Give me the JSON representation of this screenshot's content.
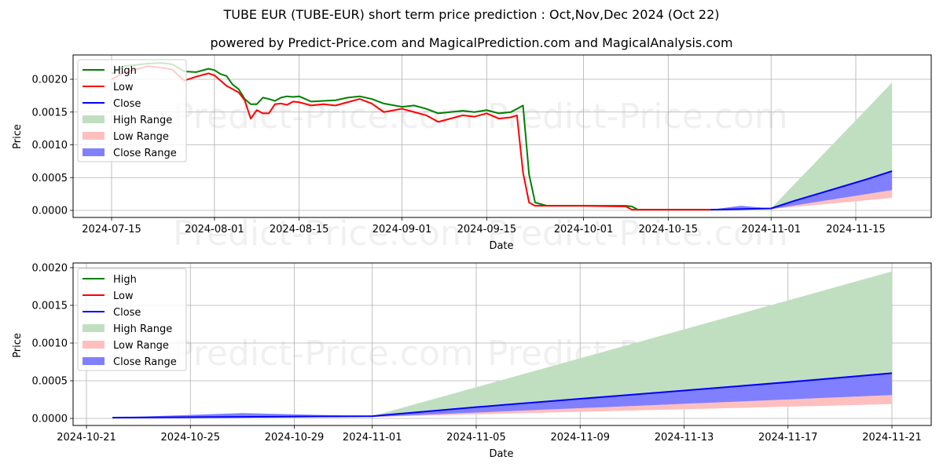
{
  "title": "TUBE EUR (TUBE-EUR) short term price prediction : Oct,Nov,Dec 2024 (Oct 22)",
  "subtitle": "powered by Predict-Price.com and MagicalPrediction.com and MagicalAnalysis.com",
  "watermark": "Predict-Price.com",
  "colors": {
    "high": "#008000",
    "low": "#ff0000",
    "close": "#0000ff",
    "high_range": "#c0dfc0",
    "low_range": "#ffbfbf",
    "close_range": "#8080ff"
  },
  "legend": [
    "High",
    "Low",
    "Close",
    "High Range",
    "Low Range",
    "Close Range"
  ],
  "chart_data": [
    {
      "type": "line",
      "title": "",
      "xlabel": "Date",
      "ylabel": "Price",
      "ylim": [
        -0.0001,
        0.0024
      ],
      "xlim": [
        "2024-07-09",
        "2024-11-26"
      ],
      "grid": true,
      "legend_position": "upper left",
      "x_ticks": [
        "2024-07-15",
        "2024-08-01",
        "2024-08-15",
        "2024-09-01",
        "2024-09-15",
        "2024-10-01",
        "2024-10-15",
        "2024-11-01",
        "2024-11-15"
      ],
      "y_ticks": [
        "0.0000",
        "0.0005",
        "0.0010",
        "0.0015",
        "0.0020"
      ],
      "series": [
        {
          "name": "High",
          "x": [
            "2024-07-15",
            "2024-07-17",
            "2024-07-19",
            "2024-07-21",
            "2024-07-23",
            "2024-07-25",
            "2024-07-27",
            "2024-07-29",
            "2024-07-31",
            "2024-08-01",
            "2024-08-02",
            "2024-08-03",
            "2024-08-04",
            "2024-08-05",
            "2024-08-06",
            "2024-08-07",
            "2024-08-08",
            "2024-08-09",
            "2024-08-10",
            "2024-08-11",
            "2024-08-12",
            "2024-08-13",
            "2024-08-14",
            "2024-08-15",
            "2024-08-17",
            "2024-08-19",
            "2024-08-21",
            "2024-08-23",
            "2024-08-25",
            "2024-08-27",
            "2024-08-29",
            "2024-09-01",
            "2024-09-03",
            "2024-09-05",
            "2024-09-07",
            "2024-09-09",
            "2024-09-11",
            "2024-09-13",
            "2024-09-15",
            "2024-09-17",
            "2024-09-19",
            "2024-09-20",
            "2024-09-21",
            "2024-09-22",
            "2024-09-23",
            "2024-09-25",
            "2024-10-01",
            "2024-10-08",
            "2024-10-09",
            "2024-10-10",
            "2024-10-22"
          ],
          "values": [
            0.00208,
            0.0022,
            0.00222,
            0.00224,
            0.00225,
            0.00223,
            0.00212,
            0.00211,
            0.00216,
            0.00214,
            0.00208,
            0.00205,
            0.00192,
            0.00185,
            0.0017,
            0.00162,
            0.00162,
            0.00172,
            0.0017,
            0.00167,
            0.00172,
            0.00174,
            0.00173,
            0.00174,
            0.00166,
            0.00167,
            0.00168,
            0.00172,
            0.00174,
            0.0017,
            0.00163,
            0.00158,
            0.0016,
            0.00155,
            0.00148,
            0.0015,
            0.00152,
            0.0015,
            0.00153,
            0.00148,
            0.0015,
            0.00155,
            0.0016,
            0.00055,
            0.00012,
            7e-05,
            7e-05,
            7e-05,
            6e-05,
            1e-05,
            1e-05
          ]
        },
        {
          "name": "Low",
          "x": [
            "2024-07-15",
            "2024-07-17",
            "2024-07-19",
            "2024-07-21",
            "2024-07-23",
            "2024-07-25",
            "2024-07-27",
            "2024-07-29",
            "2024-07-31",
            "2024-08-01",
            "2024-08-02",
            "2024-08-03",
            "2024-08-04",
            "2024-08-05",
            "2024-08-06",
            "2024-08-07",
            "2024-08-08",
            "2024-08-09",
            "2024-08-10",
            "2024-08-11",
            "2024-08-12",
            "2024-08-13",
            "2024-08-14",
            "2024-08-15",
            "2024-08-17",
            "2024-08-19",
            "2024-08-21",
            "2024-08-23",
            "2024-08-25",
            "2024-08-27",
            "2024-08-29",
            "2024-09-01",
            "2024-09-03",
            "2024-09-05",
            "2024-09-07",
            "2024-09-09",
            "2024-09-11",
            "2024-09-13",
            "2024-09-15",
            "2024-09-17",
            "2024-09-19",
            "2024-09-20",
            "2024-09-21",
            "2024-09-22",
            "2024-09-23",
            "2024-09-25",
            "2024-10-01",
            "2024-10-08",
            "2024-10-09",
            "2024-10-22"
          ],
          "values": [
            0.002,
            0.0021,
            0.00215,
            0.0022,
            0.00218,
            0.00215,
            0.00198,
            0.00204,
            0.00209,
            0.00206,
            0.00198,
            0.0019,
            0.00185,
            0.0018,
            0.00168,
            0.0014,
            0.00153,
            0.00148,
            0.00148,
            0.00162,
            0.00163,
            0.00161,
            0.00166,
            0.00165,
            0.0016,
            0.00162,
            0.0016,
            0.00165,
            0.0017,
            0.00163,
            0.0015,
            0.00155,
            0.0015,
            0.00145,
            0.00135,
            0.0014,
            0.00145,
            0.00143,
            0.00148,
            0.0014,
            0.00142,
            0.00145,
            0.00058,
            0.00012,
            7e-05,
            7e-05,
            7e-05,
            6e-05,
            1e-05,
            1e-05
          ]
        },
        {
          "name": "Close",
          "x": [
            "2024-10-22",
            "2024-10-27",
            "2024-11-01",
            "2024-11-05",
            "2024-11-09",
            "2024-11-13",
            "2024-11-17",
            "2024-11-21"
          ],
          "values": [
            1e-05,
            2e-05,
            3e-05,
            0.00015,
            0.00026,
            0.00037,
            0.00048,
            0.0006
          ]
        },
        {
          "name": "High Range",
          "x": [
            "2024-11-01",
            "2024-11-21"
          ],
          "upper": [
            3e-05,
            0.00195
          ],
          "lower": [
            3e-05,
            0.0006
          ]
        },
        {
          "name": "Low Range",
          "x": [
            "2024-11-01",
            "2024-11-21"
          ],
          "upper": [
            3e-05,
            0.00031
          ],
          "lower": [
            2e-05,
            0.00019
          ]
        },
        {
          "name": "Close Range",
          "x": [
            "2024-10-22",
            "2024-10-27",
            "2024-11-01",
            "2024-11-21"
          ],
          "upper": [
            1e-05,
            7e-05,
            3e-05,
            0.00061
          ],
          "lower": [
            1e-05,
            1e-05,
            2e-05,
            0.00031
          ]
        }
      ]
    },
    {
      "type": "line",
      "title": "",
      "xlabel": "Date",
      "ylabel": "Price",
      "ylim": [
        -9e-05,
        0.00202
      ],
      "xlim": [
        "2024-10-20",
        "2024-11-22"
      ],
      "grid": true,
      "legend_position": "upper left",
      "x_ticks": [
        "2024-10-21",
        "2024-10-25",
        "2024-10-29",
        "2024-11-01",
        "2024-11-05",
        "2024-11-09",
        "2024-11-13",
        "2024-11-17",
        "2024-11-21"
      ],
      "y_ticks": [
        "0.0000",
        "0.0005",
        "0.0010",
        "0.0015",
        "0.0020"
      ],
      "series": [
        {
          "name": "Close",
          "x": [
            "2024-10-22",
            "2024-10-27",
            "2024-11-01",
            "2024-11-05",
            "2024-11-09",
            "2024-11-13",
            "2024-11-17",
            "2024-11-21"
          ],
          "values": [
            1e-05,
            2e-05,
            3e-05,
            0.00015,
            0.00026,
            0.00037,
            0.00048,
            0.0006
          ]
        },
        {
          "name": "High Range",
          "x": [
            "2024-11-01",
            "2024-11-21"
          ],
          "upper": [
            3e-05,
            0.00195
          ],
          "lower": [
            3e-05,
            0.0006
          ]
        },
        {
          "name": "Low Range",
          "x": [
            "2024-11-01",
            "2024-11-21"
          ],
          "upper": [
            3e-05,
            0.00031
          ],
          "lower": [
            2e-05,
            0.00019
          ]
        },
        {
          "name": "Close Range",
          "x": [
            "2024-10-22",
            "2024-10-27",
            "2024-11-01",
            "2024-11-21"
          ],
          "upper": [
            1e-05,
            7e-05,
            3e-05,
            0.00061
          ],
          "lower": [
            1e-05,
            1e-05,
            2e-05,
            0.00031
          ]
        }
      ]
    }
  ]
}
